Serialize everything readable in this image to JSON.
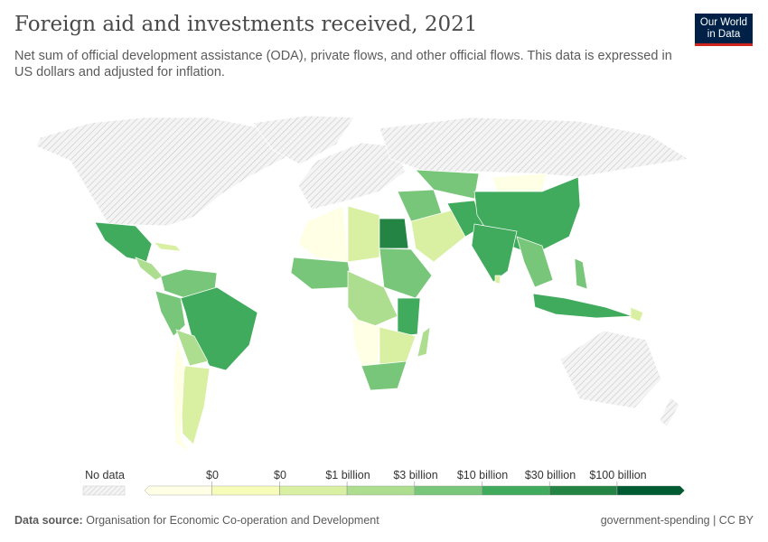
{
  "header": {
    "title": "Foreign aid and investments received, 2021",
    "subtitle": "Net sum of official development assistance (ODA), private flows, and other official flows. This data is expressed in US dollars and adjusted for inflation.",
    "logo": "Our World in Data"
  },
  "legend": {
    "no_data_label": "No data",
    "bins": [
      "$0",
      "$0",
      "$1 billion",
      "$3 billion",
      "$10 billion",
      "$30 billion",
      "$100 billion"
    ],
    "colors": [
      "#ffffe5",
      "#f7fcb9",
      "#d9f0a3",
      "#addd8e",
      "#78c679",
      "#41ab5d",
      "#238443",
      "#005a32"
    ],
    "no_data_color": "#e8e8e8"
  },
  "footer": {
    "source_label": "Data source:",
    "source": "Organisation for Economic Co-operation and Development",
    "right": "government-spending | CC BY"
  }
}
